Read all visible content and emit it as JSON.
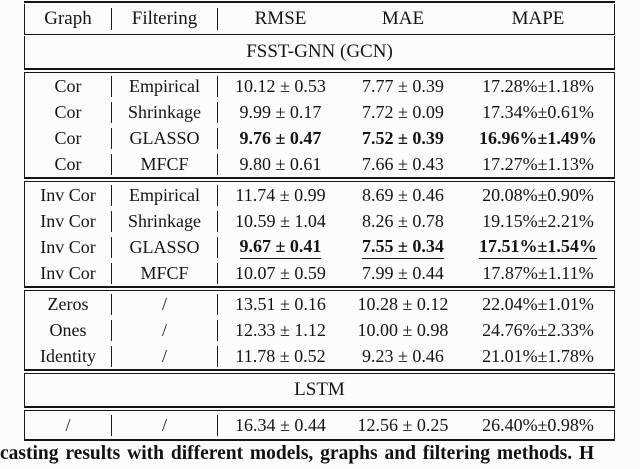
{
  "table": {
    "columns": {
      "graph": "Graph",
      "filtering": "Filtering",
      "rmse": "RMSE",
      "mae": "MAE",
      "mape": "MAPE"
    },
    "sections": {
      "first": "FSST-GNN (GCN)",
      "second": "LSTM"
    },
    "rows": [
      {
        "graph": "Cor",
        "filtering": "Empirical",
        "rmse": "10.12 ± 0.53",
        "mae": "7.77 ± 0.39",
        "mape": "17.28%±1.18%",
        "emphasis": "none"
      },
      {
        "graph": "Cor",
        "filtering": "Shrinkage",
        "rmse": "9.99 ± 0.17",
        "mae": "7.72 ± 0.09",
        "mape": "17.34%±0.61%",
        "emphasis": "none"
      },
      {
        "graph": "Cor",
        "filtering": "GLASSO",
        "rmse": "9.76 ± 0.47",
        "mae": "7.52 ± 0.39",
        "mape": "16.96%±1.49%",
        "emphasis": "bold"
      },
      {
        "graph": "Cor",
        "filtering": "MFCF",
        "rmse": "9.80 ± 0.61",
        "mae": "7.66 ± 0.43",
        "mape": "17.27%±1.13%",
        "emphasis": "none"
      },
      {
        "graph": "Inv Cor",
        "filtering": "Empirical",
        "rmse": "11.74 ± 0.99",
        "mae": "8.69 ± 0.46",
        "mape": "20.08%±0.90%",
        "emphasis": "none"
      },
      {
        "graph": "Inv Cor",
        "filtering": "Shrinkage",
        "rmse": "10.59 ± 1.04",
        "mae": "8.26 ± 0.78",
        "mape": "19.15%±2.21%",
        "emphasis": "none"
      },
      {
        "graph": "Inv Cor",
        "filtering": "GLASSO",
        "rmse": "9.67 ± 0.41",
        "mae": "7.55 ± 0.34",
        "mape": "17.51%±1.54%",
        "emphasis": "bold-underline"
      },
      {
        "graph": "Inv Cor",
        "filtering": "MFCF",
        "rmse": "10.07 ± 0.59",
        "mae": "7.99 ± 0.44",
        "mape": "17.87%±1.11%",
        "emphasis": "none"
      },
      {
        "graph": "Zeros",
        "filtering": "/",
        "rmse": "13.51 ± 0.16",
        "mae": "10.28 ± 0.12",
        "mape": "22.04%±1.01%",
        "emphasis": "none"
      },
      {
        "graph": "Ones",
        "filtering": "/",
        "rmse": "12.33 ± 1.12",
        "mae": "10.00 ± 0.98",
        "mape": "24.76%±2.33%",
        "emphasis": "none"
      },
      {
        "graph": "Identity",
        "filtering": "/",
        "rmse": "11.78 ± 0.52",
        "mae": "9.23 ± 0.46",
        "mape": "21.01%±1.78%",
        "emphasis": "none"
      },
      {
        "graph": "/",
        "filtering": "/",
        "rmse": "16.34 ± 0.44",
        "mae": "12.56 ± 0.25",
        "mape": "26.40%±0.98%",
        "emphasis": "none"
      }
    ]
  },
  "caption": "casting results with different models, graphs and filtering methods. H"
}
